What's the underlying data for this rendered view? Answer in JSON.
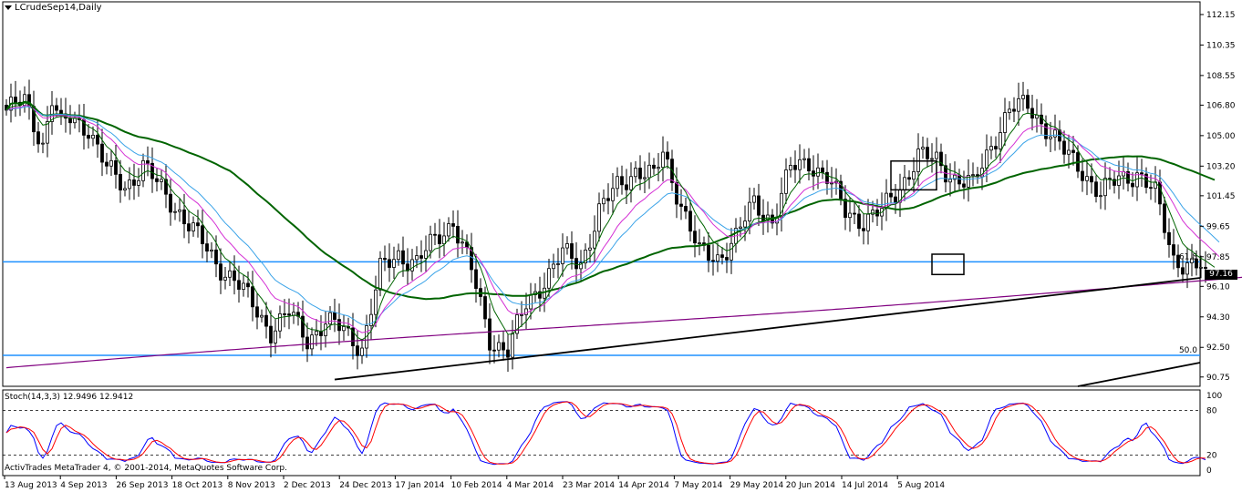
{
  "chart_title": "LCrudeSep14,Daily",
  "indicator_label": "Stoch(14,3,3) 12.9496 12.9412",
  "copyright": "ActivTrades MetaTrader 4, © 2001-2014, MetaQuotes Software Corp.",
  "current_price": "97.16",
  "fib_labels": [
    "61.8",
    "50.0"
  ],
  "colors": {
    "candle": "#000000",
    "sma_long": "#006400",
    "ema_blue": "#3aa3e8",
    "ema_magenta": "#d42fd4",
    "ema_green": "#006400",
    "sma_200": "#800080",
    "fib_line": "#1e90ff",
    "trend_line": "#000000",
    "stoch_main": "#0000ff",
    "stoch_signal": "#ff0000"
  },
  "chart_data": {
    "type": "candlestick",
    "symbol": "LCrudeSep14",
    "timeframe": "Daily",
    "ylim": [
      90.2,
      112.9
    ],
    "y_ticks": [
      "112.15",
      "110.35",
      "108.55",
      "106.80",
      "105.00",
      "103.20",
      "101.45",
      "99.65",
      "97.85",
      "96.10",
      "94.30",
      "92.50",
      "90.75"
    ],
    "x_ticks": [
      "13 Aug 2013",
      "4 Sep 2013",
      "26 Sep 2013",
      "18 Oct 2013",
      "8 Nov 2013",
      "2 Dec 2013",
      "24 Dec 2013",
      "17 Jan 2014",
      "10 Feb 2014",
      "4 Mar 2014",
      "23 Mar 2014",
      "14 Apr 2014",
      "7 May 2014",
      "29 May 2014",
      "20 Jun 2014",
      "14 Jul 2014",
      "5 Aug 2014"
    ],
    "price_anchors": [
      [
        0,
        106.5
      ],
      [
        4,
        107.0
      ],
      [
        8,
        104.5
      ],
      [
        10,
        107.2
      ],
      [
        12,
        105.5
      ],
      [
        14,
        106.0
      ],
      [
        18,
        105.5
      ],
      [
        22,
        103.0
      ],
      [
        26,
        102.0
      ],
      [
        30,
        103.2
      ],
      [
        34,
        101.8
      ],
      [
        38,
        100.5
      ],
      [
        42,
        99.0
      ],
      [
        46,
        97.5
      ],
      [
        50,
        96.5
      ],
      [
        54,
        95.0
      ],
      [
        58,
        93.5
      ],
      [
        62,
        94.5
      ],
      [
        66,
        93.0
      ],
      [
        70,
        94.0
      ],
      [
        74,
        93.5
      ],
      [
        78,
        92.5
      ],
      [
        82,
        97.0
      ],
      [
        86,
        98.0
      ],
      [
        90,
        97.5
      ],
      [
        94,
        98.8
      ],
      [
        98,
        100.0
      ],
      [
        102,
        97.0
      ],
      [
        106,
        93.0
      ],
      [
        110,
        92.3
      ],
      [
        114,
        95.0
      ],
      [
        118,
        96.5
      ],
      [
        122,
        98.0
      ],
      [
        126,
        97.5
      ],
      [
        130,
        100.5
      ],
      [
        134,
        102.0
      ],
      [
        138,
        103.0
      ],
      [
        142,
        102.5
      ],
      [
        144,
        104.0
      ],
      [
        148,
        101.0
      ],
      [
        152,
        98.0
      ],
      [
        156,
        97.8
      ],
      [
        160,
        99.0
      ],
      [
        164,
        101.0
      ],
      [
        168,
        100.0
      ],
      [
        172,
        103.0
      ],
      [
        176,
        103.5
      ],
      [
        180,
        102.5
      ],
      [
        184,
        100.5
      ],
      [
        188,
        100.0
      ],
      [
        192,
        100.5
      ],
      [
        196,
        102.0
      ],
      [
        200,
        103.8
      ],
      [
        204,
        103.5
      ],
      [
        208,
        102.5
      ],
      [
        212,
        102.0
      ],
      [
        216,
        104.5
      ],
      [
        220,
        106.5
      ],
      [
        224,
        106.8
      ],
      [
        228,
        105.5
      ],
      [
        232,
        104.0
      ],
      [
        236,
        103.0
      ],
      [
        240,
        101.5
      ],
      [
        244,
        102.5
      ],
      [
        248,
        102.8
      ],
      [
        252,
        101.5
      ],
      [
        256,
        97.8
      ],
      [
        260,
        97.2
      ],
      [
        263,
        97.16
      ]
    ],
    "fibonacci_levels": [
      {
        "level": "61.8",
        "price": 97.55
      },
      {
        "level": "50.0",
        "price": 92.03
      }
    ],
    "trend_lines": [
      {
        "from": [
          72,
          90.6
        ],
        "to": [
          284,
          96.6
        ]
      },
      {
        "from": [
          235,
          90.2
        ],
        "to": [
          284,
          91.6
        ]
      }
    ],
    "stochastic": {
      "params": [
        14,
        3,
        3
      ],
      "main": 12.9496,
      "signal": 12.9412,
      "levels": [
        80,
        20
      ],
      "scale": [
        0,
        100
      ]
    },
    "grid": false
  }
}
